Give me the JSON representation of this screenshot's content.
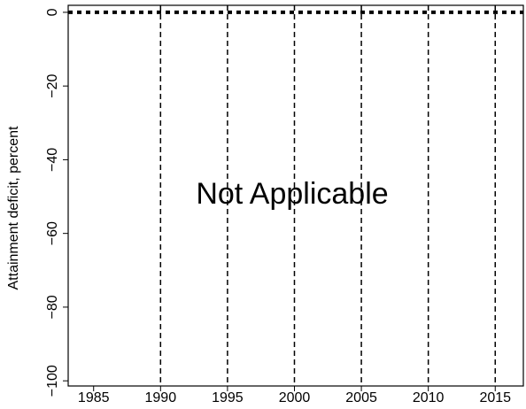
{
  "chart_data": {
    "type": "line",
    "ylabel": "Attainment deficit, percent",
    "annotation": "Not Applicable",
    "annotation_color": "#ff0000",
    "series": [],
    "xlim": [
      1983.1,
      2017.1
    ],
    "xticks": [
      1985,
      1990,
      1995,
      2000,
      2005,
      2010,
      2015
    ],
    "ylim": [
      -101.4,
      1.9
    ],
    "yticks": [
      {
        "value": 0,
        "label": "0"
      },
      {
        "value": -20,
        "label": "−20"
      },
      {
        "value": -40,
        "label": "−40"
      },
      {
        "value": -60,
        "label": "−60"
      },
      {
        "value": -80,
        "label": "−80"
      },
      {
        "value": -100,
        "label": "−100"
      }
    ],
    "vlines": [
      1990,
      1995,
      2000,
      2005,
      2010,
      2015
    ],
    "hline": 0
  }
}
